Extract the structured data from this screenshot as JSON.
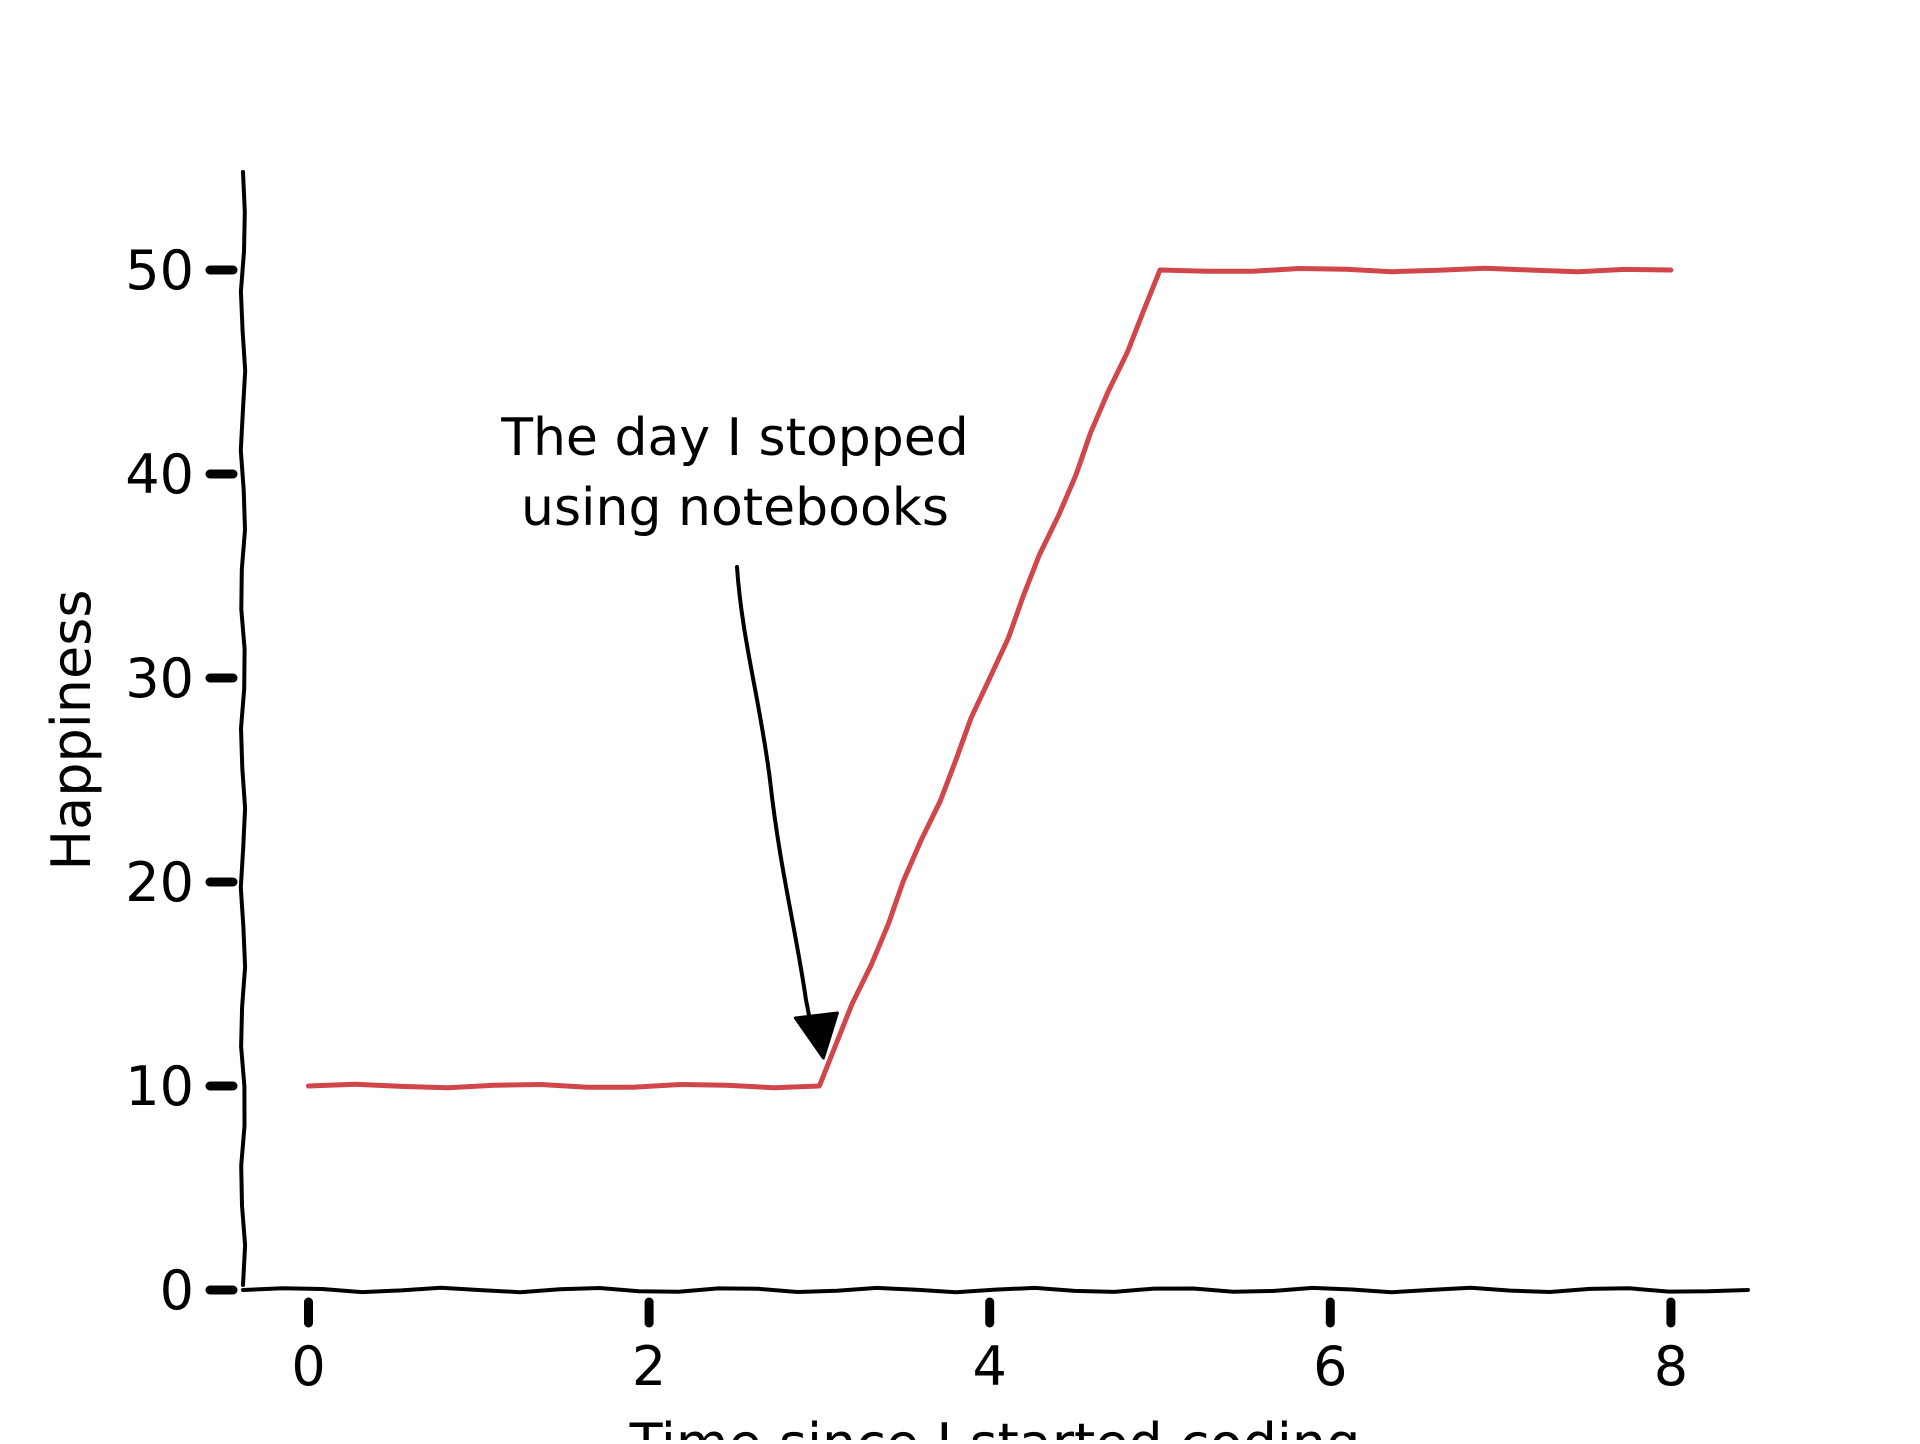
{
  "chart_data": {
    "type": "line",
    "title": "",
    "xlabel": "Time since I started coding",
    "ylabel": "Happiness",
    "xlim": [
      -0.4,
      8.4
    ],
    "ylim": [
      0,
      55
    ],
    "x_ticks": [
      {
        "value": 0,
        "label": "0"
      },
      {
        "value": 2,
        "label": "2"
      },
      {
        "value": 4,
        "label": "4"
      },
      {
        "value": 6,
        "label": "6"
      },
      {
        "value": 8,
        "label": "8"
      }
    ],
    "y_ticks": [
      {
        "value": 0,
        "label": "0"
      },
      {
        "value": 10,
        "label": "10"
      },
      {
        "value": 20,
        "label": "20"
      },
      {
        "value": 30,
        "label": "30"
      },
      {
        "value": 40,
        "label": "40"
      },
      {
        "value": 50,
        "label": "50"
      }
    ],
    "grid": false,
    "series": [
      {
        "color": "#d0464a",
        "points": [
          [
            0,
            10
          ],
          [
            3,
            10
          ],
          [
            5,
            50
          ],
          [
            8,
            50
          ]
        ]
      }
    ],
    "annotation": {
      "lines": [
        "The day I stopped",
        "using notebooks"
      ],
      "target": [
        3,
        10
      ],
      "text_anchor": [
        2.5,
        38
      ]
    }
  },
  "colors": {
    "axis": "#000000",
    "series": "#d0464a"
  }
}
